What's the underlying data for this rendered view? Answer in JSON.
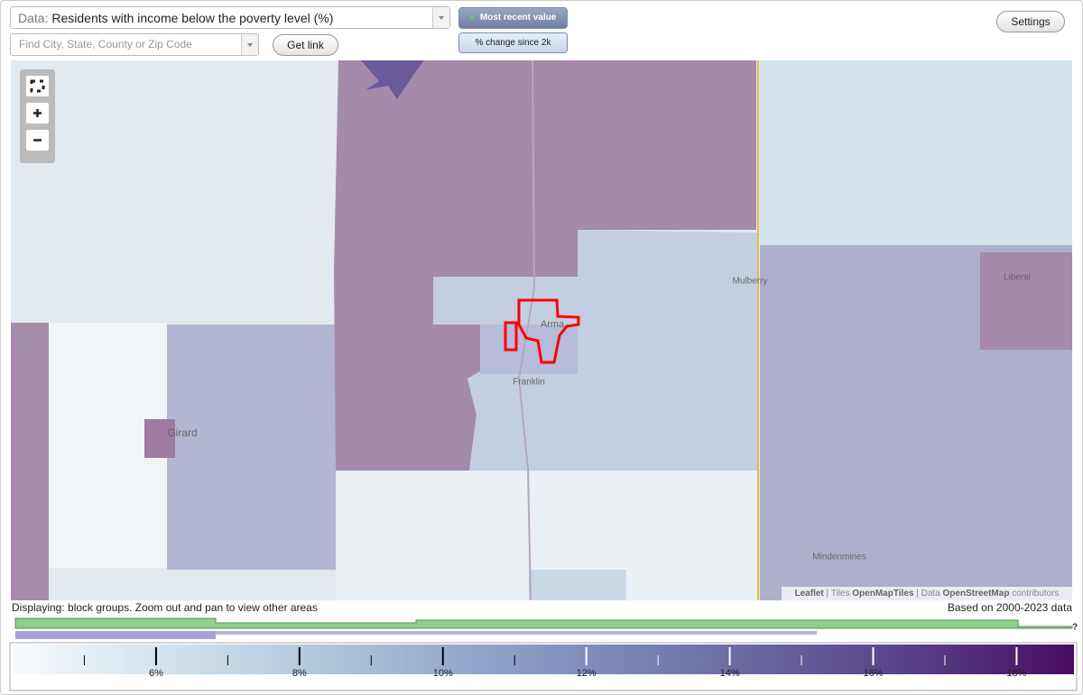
{
  "controls": {
    "data_label": "Data:",
    "data_value": "Residents with income below the poverty level (%)",
    "search_placeholder": "Find City, State, County or Zip Code",
    "get_link": "Get link",
    "most_recent": "Most recent value",
    "change_since": "% change since 2k",
    "settings": "Settings"
  },
  "map": {
    "places": [
      "Girard",
      "Arma",
      "Franklin",
      "Mulberry",
      "Liberal",
      "Mindenmines"
    ],
    "attribution": [
      "Leaflet",
      "|",
      "Tiles",
      "OpenMapTiles",
      "|",
      "Data",
      "OpenStreetMap",
      "contributors"
    ]
  },
  "status": {
    "displaying": "Displaying: block groups. Zoom out and pan to view other areas",
    "based_on": "Based on 2000-2023 data"
  },
  "timeline": {
    "help": "?"
  },
  "legend": {
    "range": [
      4.0,
      18.8
    ],
    "major_ticks": [
      {
        "value": 6,
        "label": "6%"
      },
      {
        "value": 8,
        "label": "8%"
      },
      {
        "value": 10,
        "label": "10%"
      },
      {
        "value": 12,
        "label": "12%"
      },
      {
        "value": 14,
        "label": "14%"
      },
      {
        "value": 16,
        "label": "16%"
      },
      {
        "value": 18,
        "label": "18%"
      }
    ],
    "minor_ticks": [
      5,
      7,
      9,
      11,
      13,
      15,
      17
    ]
  }
}
